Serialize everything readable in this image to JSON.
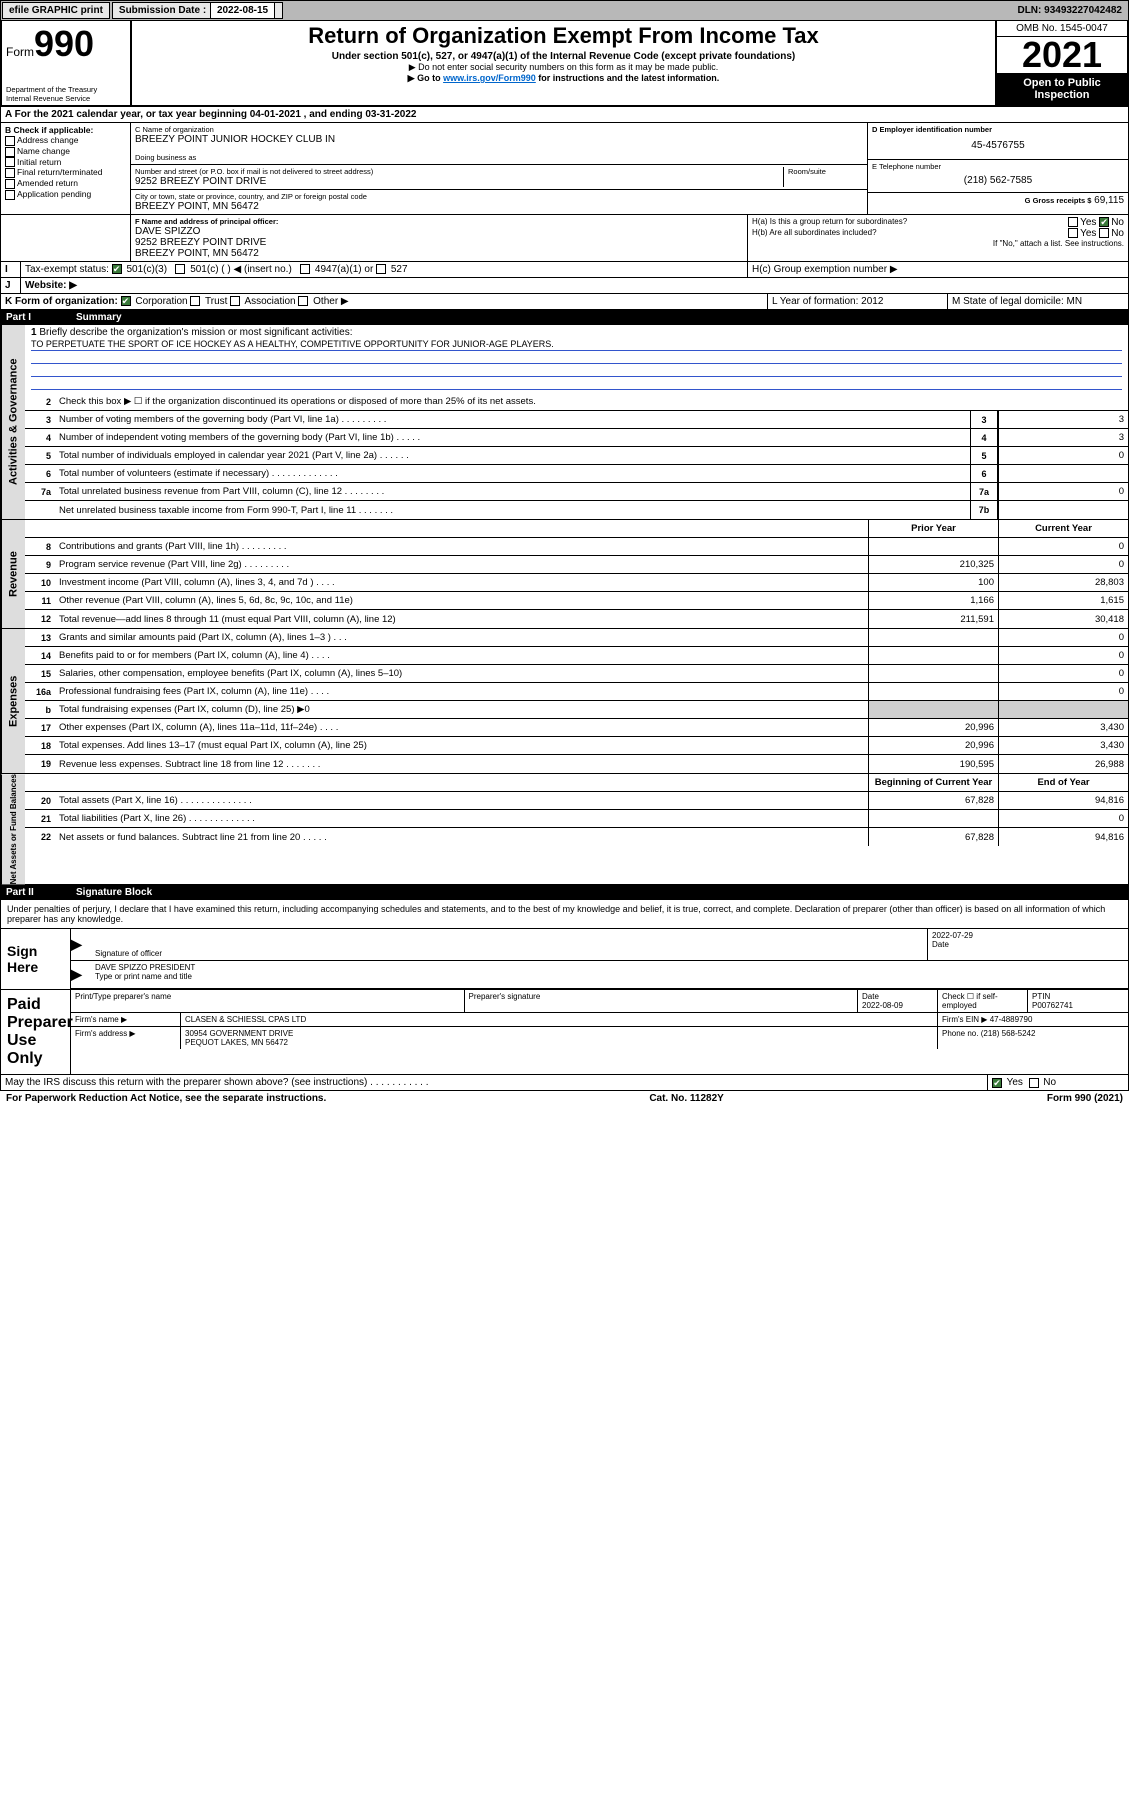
{
  "topbar": {
    "efile": "efile GRAPHIC print",
    "sub_lbl": "Submission Date :",
    "sub_date": "2022-08-15",
    "dln": "DLN: 93493227042482"
  },
  "header": {
    "form_word": "Form",
    "form_num": "990",
    "dept": "Department of the Treasury\nInternal Revenue Service",
    "title": "Return of Organization Exempt From Income Tax",
    "sub1": "Under section 501(c), 527, or 4947(a)(1) of the Internal Revenue Code (except private foundations)",
    "sub2": "▶ Do not enter social security numbers on this form as it may be made public.",
    "sub3_pre": "▶ Go to ",
    "sub3_link": "www.irs.gov/Form990",
    "sub3_post": " for instructions and the latest information.",
    "omb": "OMB No. 1545-0047",
    "year": "2021",
    "inspect": "Open to Public Inspection"
  },
  "period": "For the 2021 calendar year, or tax year beginning 04-01-2021   , and ending 03-31-2022",
  "sectionB": {
    "title": "B Check if applicable:",
    "opts": [
      "Address change",
      "Name change",
      "Initial return",
      "Final return/terminated",
      "Amended return",
      "Application pending"
    ]
  },
  "org": {
    "c_lbl": "C Name of organization",
    "name": "BREEZY POINT JUNIOR HOCKEY CLUB IN",
    "dba_lbl": "Doing business as",
    "addr_lbl": "Number and street (or P.O. box if mail is not delivered to street address)",
    "room_lbl": "Room/suite",
    "addr": "9252 BREEZY POINT DRIVE",
    "city_lbl": "City or town, state or province, country, and ZIP or foreign postal code",
    "city": "BREEZY POINT, MN  56472",
    "f_lbl": "F Name and address of principal officer:",
    "officer": "DAVE SPIZZO",
    "officer_addr1": "9252 BREEZY POINT DRIVE",
    "officer_addr2": "BREEZY POINT, MN  56472"
  },
  "right": {
    "d_lbl": "D Employer identification number",
    "ein": "45-4576755",
    "e_lbl": "E Telephone number",
    "phone": "(218) 562-7585",
    "g_lbl": "G Gross receipts $",
    "gross": "69,115",
    "ha": "H(a)  Is this a group return for subordinates?",
    "hb": "H(b)  Are all subordinates included?",
    "hb_note": "If \"No,\" attach a list. See instructions.",
    "hc": "H(c)  Group exemption number ▶",
    "yes": "Yes",
    "no": "No"
  },
  "taxstatus": {
    "i": "I",
    "lbl": "Tax-exempt status:",
    "c3": "501(c)(3)",
    "c": "501(c) (  ) ◀ (insert no.)",
    "a1": "4947(a)(1) or",
    "s527": "527"
  },
  "website": {
    "j": "J",
    "lbl": "Website: ▶"
  },
  "korg": {
    "k": "K Form of organization:",
    "opts": [
      "Corporation",
      "Trust",
      "Association",
      "Other ▶"
    ],
    "l": "L Year of formation: 2012",
    "m": "M State of legal domicile: MN"
  },
  "part1": {
    "hdr": "Part I",
    "title": "Summary",
    "q1": "Briefly describe the organization's mission or most significant activities:",
    "mission": "TO PERPETUATE THE SPORT OF ICE HOCKEY AS A HEALTHY, COMPETITIVE OPPORTUNITY FOR JUNIOR-AGE PLAYERS.",
    "q2": "Check this box ▶ ☐  if the organization discontinued its operations or disposed of more than 25% of its net assets.",
    "prior": "Prior Year",
    "current": "Current Year",
    "begin": "Beginning of Current Year",
    "end": "End of Year",
    "lines_gov": [
      {
        "n": "3",
        "d": "Number of voting members of the governing body (Part VI, line 1a)   .    .    .    .    .    .    .    .    .",
        "b": "3",
        "v": "3"
      },
      {
        "n": "4",
        "d": "Number of independent voting members of the governing body (Part VI, line 1b)   .    .    .    .    .",
        "b": "4",
        "v": "3"
      },
      {
        "n": "5",
        "d": "Total number of individuals employed in calendar year 2021 (Part V, line 2a)   .    .    .    .    .    .",
        "b": "5",
        "v": "0"
      },
      {
        "n": "6",
        "d": "Total number of volunteers (estimate if necessary)   .    .    .    .    .    .    .    .    .    .    .    .    .",
        "b": "6",
        "v": ""
      },
      {
        "n": "7a",
        "d": "Total unrelated business revenue from Part VIII, column (C), line 12   .    .    .    .    .    .    .    .",
        "b": "7a",
        "v": "0"
      },
      {
        "n": "",
        "d": "Net unrelated business taxable income from Form 990-T, Part I, line 11   .    .    .    .    .    .    .",
        "b": "7b",
        "v": ""
      }
    ],
    "lines_rev": [
      {
        "n": "8",
        "d": "Contributions and grants (Part VIII, line 1h)   .    .    .    .    .    .    .    .    .",
        "p": "",
        "c": "0"
      },
      {
        "n": "9",
        "d": "Program service revenue (Part VIII, line 2g)   .    .    .    .    .    .    .    .    .",
        "p": "210,325",
        "c": "0"
      },
      {
        "n": "10",
        "d": "Investment income (Part VIII, column (A), lines 3, 4, and 7d )   .    .    .    .",
        "p": "100",
        "c": "28,803"
      },
      {
        "n": "11",
        "d": "Other revenue (Part VIII, column (A), lines 5, 6d, 8c, 9c, 10c, and 11e)",
        "p": "1,166",
        "c": "1,615"
      },
      {
        "n": "12",
        "d": "Total revenue—add lines 8 through 11 (must equal Part VIII, column (A), line 12)",
        "p": "211,591",
        "c": "30,418"
      }
    ],
    "lines_exp": [
      {
        "n": "13",
        "d": "Grants and similar amounts paid (Part IX, column (A), lines 1–3 )   .    .    .",
        "p": "",
        "c": "0"
      },
      {
        "n": "14",
        "d": "Benefits paid to or for members (Part IX, column (A), line 4)   .    .    .    .",
        "p": "",
        "c": "0"
      },
      {
        "n": "15",
        "d": "Salaries, other compensation, employee benefits (Part IX, column (A), lines 5–10)",
        "p": "",
        "c": "0"
      },
      {
        "n": "16a",
        "d": "Professional fundraising fees (Part IX, column (A), line 11e)   .    .    .    .",
        "p": "",
        "c": "0"
      },
      {
        "n": "b",
        "d": "Total fundraising expenses (Part IX, column (D), line 25) ▶0",
        "p": "__shade__",
        "c": "__shade__"
      },
      {
        "n": "17",
        "d": "Other expenses (Part IX, column (A), lines 11a–11d, 11f–24e)   .    .    .    .",
        "p": "20,996",
        "c": "3,430"
      },
      {
        "n": "18",
        "d": "Total expenses. Add lines 13–17 (must equal Part IX, column (A), line 25)",
        "p": "20,996",
        "c": "3,430"
      },
      {
        "n": "19",
        "d": "Revenue less expenses. Subtract line 18 from line 12   .    .    .    .    .    .    .",
        "p": "190,595",
        "c": "26,988"
      }
    ],
    "lines_net": [
      {
        "n": "20",
        "d": "Total assets (Part X, line 16)   .    .    .    .    .    .    .    .    .    .    .    .    .    .",
        "p": "67,828",
        "c": "94,816"
      },
      {
        "n": "21",
        "d": "Total liabilities (Part X, line 26)   .    .    .    .    .    .    .    .    .    .    .    .    .",
        "p": "",
        "c": "0"
      },
      {
        "n": "22",
        "d": "Net assets or fund balances. Subtract line 21 from line 20   .    .    .    .    .",
        "p": "67,828",
        "c": "94,816"
      }
    ],
    "labels": {
      "gov": "Activities & Governance",
      "rev": "Revenue",
      "exp": "Expenses",
      "net": "Net Assets or Fund Balances"
    }
  },
  "part2": {
    "hdr": "Part II",
    "title": "Signature Block",
    "decl": "Under penalties of perjury, I declare that I have examined this return, including accompanying schedules and statements, and to the best of my knowledge and belief, it is true, correct, and complete. Declaration of preparer (other than officer) is based on all information of which preparer has any knowledge."
  },
  "sign": {
    "here": "Sign Here",
    "sig_lbl": "Signature of officer",
    "date_lbl": "Date",
    "date": "2022-07-29",
    "name": "DAVE SPIZZO PRESIDENT",
    "name_lbl": "Type or print name and title"
  },
  "paid": {
    "title": "Paid Preparer Use Only",
    "print_lbl": "Print/Type preparer's name",
    "sig_lbl": "Preparer's signature",
    "date_lbl": "Date",
    "date": "2022-08-09",
    "check_lbl": "Check ☐ if self-employed",
    "ptin_lbl": "PTIN",
    "ptin": "P00762741",
    "firm_name_lbl": "Firm's name    ▶",
    "firm_name": "CLASEN & SCHIESSL CPAS LTD",
    "firm_ein_lbl": "Firm's EIN ▶",
    "firm_ein": "47-4889790",
    "firm_addr_lbl": "Firm's address ▶",
    "firm_addr1": "30954 GOVERNMENT DRIVE",
    "firm_addr2": "PEQUOT LAKES, MN  56472",
    "phone_lbl": "Phone no.",
    "phone": "(218) 568-5242"
  },
  "discuss": "May the IRS discuss this return with the preparer shown above? (see instructions)   .    .    .    .    .    .    .    .    .    .    .",
  "footer": {
    "left": "For Paperwork Reduction Act Notice, see the separate instructions.",
    "mid": "Cat. No. 11282Y",
    "right": "Form 990 (2021)"
  }
}
